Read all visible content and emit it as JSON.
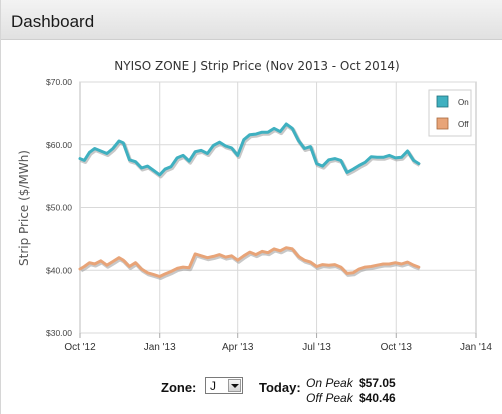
{
  "header": {
    "title": "Dashboard"
  },
  "chart_data": {
    "type": "line",
    "title": "NYISO ZONE J Strip Price (Nov 2013 - Oct 2014)",
    "ylabel": "Strip Price ($/MWh)",
    "xlabel": "",
    "ylim": [
      30,
      70
    ],
    "yticks": [
      "$70.00",
      "$60.00",
      "$50.00",
      "$40.00",
      "$30.00"
    ],
    "ytick_values": [
      70,
      60,
      50,
      40,
      30
    ],
    "xlim": [
      "2012-10-01",
      "2014-01-01"
    ],
    "xticks": [
      "Oct '12",
      "Jan '13",
      "Apr '13",
      "Jul '13",
      "Oct '13",
      "Jan '14"
    ],
    "xtick_dates": [
      "2012-10-01",
      "2013-01-01",
      "2013-04-01",
      "2013-07-01",
      "2013-10-01",
      "2014-01-01"
    ],
    "grid": true,
    "legend": "top-right",
    "series": [
      {
        "name": "On",
        "color": "#3fb0c0",
        "points": [
          [
            "2012-10-01",
            57.8
          ],
          [
            "2012-10-06",
            57.5
          ],
          [
            "2012-10-12",
            58.8
          ],
          [
            "2012-10-18",
            59.4
          ],
          [
            "2012-10-25",
            59.0
          ],
          [
            "2012-11-01",
            58.6
          ],
          [
            "2012-11-08",
            59.4
          ],
          [
            "2012-11-15",
            60.6
          ],
          [
            "2012-11-20",
            60.3
          ],
          [
            "2012-11-27",
            57.6
          ],
          [
            "2012-12-04",
            57.3
          ],
          [
            "2012-12-11",
            56.3
          ],
          [
            "2012-12-18",
            56.6
          ],
          [
            "2012-12-25",
            55.9
          ],
          [
            "2013-01-01",
            55.2
          ],
          [
            "2013-01-07",
            56.1
          ],
          [
            "2013-01-14",
            56.5
          ],
          [
            "2013-01-21",
            57.9
          ],
          [
            "2013-01-28",
            58.3
          ],
          [
            "2013-02-04",
            57.4
          ],
          [
            "2013-02-11",
            58.9
          ],
          [
            "2013-02-18",
            59.1
          ],
          [
            "2013-02-25",
            58.6
          ],
          [
            "2013-03-04",
            59.9
          ],
          [
            "2013-03-11",
            60.4
          ],
          [
            "2013-03-18",
            59.8
          ],
          [
            "2013-03-25",
            59.5
          ],
          [
            "2013-04-01",
            58.3
          ],
          [
            "2013-04-08",
            60.8
          ],
          [
            "2013-04-15",
            61.6
          ],
          [
            "2013-04-22",
            61.7
          ],
          [
            "2013-04-29",
            62.0
          ],
          [
            "2013-05-06",
            62.0
          ],
          [
            "2013-05-13",
            62.6
          ],
          [
            "2013-05-20",
            62.1
          ],
          [
            "2013-05-27",
            63.3
          ],
          [
            "2013-06-03",
            62.6
          ],
          [
            "2013-06-10",
            60.7
          ],
          [
            "2013-06-17",
            59.4
          ],
          [
            "2013-06-24",
            59.7
          ],
          [
            "2013-07-01",
            57.0
          ],
          [
            "2013-07-08",
            56.6
          ],
          [
            "2013-07-15",
            57.6
          ],
          [
            "2013-07-22",
            57.8
          ],
          [
            "2013-07-29",
            57.5
          ],
          [
            "2013-08-05",
            55.6
          ],
          [
            "2013-08-12",
            56.1
          ],
          [
            "2013-08-19",
            56.7
          ],
          [
            "2013-08-26",
            57.2
          ],
          [
            "2013-09-02",
            58.1
          ],
          [
            "2013-09-09",
            58.0
          ],
          [
            "2013-09-16",
            58.0
          ],
          [
            "2013-09-23",
            58.3
          ],
          [
            "2013-09-30",
            57.9
          ],
          [
            "2013-10-07",
            58.0
          ],
          [
            "2013-10-14",
            59.0
          ],
          [
            "2013-10-21",
            57.5
          ],
          [
            "2013-10-27",
            57.0
          ]
        ]
      },
      {
        "name": "Off",
        "color": "#e8a478",
        "points": [
          [
            "2012-10-01",
            40.2
          ],
          [
            "2012-10-06",
            40.6
          ],
          [
            "2012-10-12",
            41.2
          ],
          [
            "2012-10-18",
            41.0
          ],
          [
            "2012-10-25",
            41.5
          ],
          [
            "2012-11-01",
            40.8
          ],
          [
            "2012-11-08",
            41.4
          ],
          [
            "2012-11-15",
            42.0
          ],
          [
            "2012-11-20",
            41.6
          ],
          [
            "2012-11-27",
            40.6
          ],
          [
            "2012-12-04",
            41.2
          ],
          [
            "2012-12-11",
            40.2
          ],
          [
            "2012-12-18",
            39.6
          ],
          [
            "2012-12-25",
            39.3
          ],
          [
            "2013-01-01",
            39.0
          ],
          [
            "2013-01-07",
            39.4
          ],
          [
            "2013-01-14",
            39.8
          ],
          [
            "2013-01-21",
            40.3
          ],
          [
            "2013-01-28",
            40.5
          ],
          [
            "2013-02-04",
            40.4
          ],
          [
            "2013-02-11",
            42.6
          ],
          [
            "2013-02-18",
            42.3
          ],
          [
            "2013-02-25",
            42.0
          ],
          [
            "2013-03-04",
            42.2
          ],
          [
            "2013-03-11",
            42.5
          ],
          [
            "2013-03-18",
            42.1
          ],
          [
            "2013-03-25",
            42.3
          ],
          [
            "2013-04-01",
            41.6
          ],
          [
            "2013-04-08",
            42.3
          ],
          [
            "2013-04-15",
            42.9
          ],
          [
            "2013-04-22",
            42.5
          ],
          [
            "2013-04-29",
            43.0
          ],
          [
            "2013-05-06",
            42.8
          ],
          [
            "2013-05-13",
            43.4
          ],
          [
            "2013-05-20",
            43.1
          ],
          [
            "2013-05-27",
            43.6
          ],
          [
            "2013-06-03",
            43.4
          ],
          [
            "2013-06-10",
            42.2
          ],
          [
            "2013-06-17",
            41.6
          ],
          [
            "2013-06-24",
            41.3
          ],
          [
            "2013-07-01",
            40.6
          ],
          [
            "2013-07-08",
            40.9
          ],
          [
            "2013-07-15",
            40.8
          ],
          [
            "2013-07-22",
            40.9
          ],
          [
            "2013-07-29",
            40.5
          ],
          [
            "2013-08-05",
            39.5
          ],
          [
            "2013-08-12",
            39.6
          ],
          [
            "2013-08-19",
            40.2
          ],
          [
            "2013-08-26",
            40.5
          ],
          [
            "2013-09-02",
            40.6
          ],
          [
            "2013-09-09",
            40.8
          ],
          [
            "2013-09-16",
            41.0
          ],
          [
            "2013-09-23",
            41.0
          ],
          [
            "2013-09-30",
            41.2
          ],
          [
            "2013-10-07",
            41.0
          ],
          [
            "2013-10-14",
            41.3
          ],
          [
            "2013-10-21",
            40.8
          ],
          [
            "2013-10-27",
            40.5
          ]
        ]
      }
    ]
  },
  "controls": {
    "zone_label": "Zone:",
    "zone_value": "J",
    "today_label": "Today:",
    "on_peak_label": "On Peak",
    "on_peak_value": "$57.05",
    "off_peak_label": "Off Peak",
    "off_peak_value": "$40.46"
  }
}
